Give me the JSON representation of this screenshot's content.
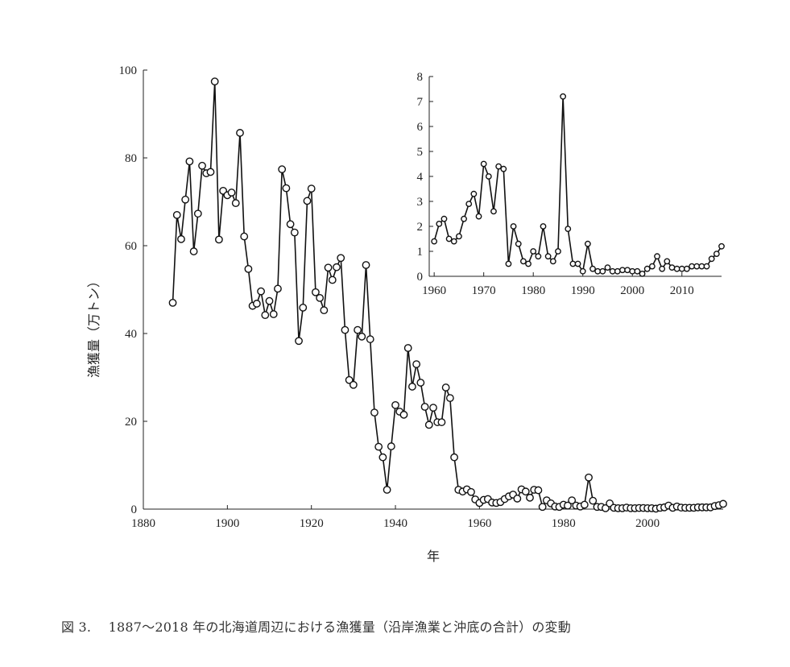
{
  "caption": "図 3.　 1887〜2018 年の北海道周辺における漁獲量（沿岸漁業と沖底の合計）の変動",
  "chart_data": [
    {
      "id": "main",
      "type": "line",
      "xlabel": "年",
      "ylabel": "漁獲量（万トン）",
      "xlim": [
        1880,
        2018
      ],
      "ylim": [
        0,
        100
      ],
      "xticks": [
        "1880",
        "1900",
        "1920",
        "1940",
        "1960",
        "1980",
        "2000"
      ],
      "yticks": [
        "0",
        "20",
        "40",
        "60",
        "80",
        "100"
      ],
      "grid": false,
      "marker": "open-circle",
      "x": [
        1887,
        1888,
        1889,
        1890,
        1891,
        1892,
        1893,
        1894,
        1895,
        1896,
        1897,
        1898,
        1899,
        1900,
        1901,
        1902,
        1903,
        1904,
        1905,
        1906,
        1907,
        1908,
        1909,
        1910,
        1911,
        1912,
        1913,
        1914,
        1915,
        1916,
        1917,
        1918,
        1919,
        1920,
        1921,
        1922,
        1923,
        1924,
        1925,
        1926,
        1927,
        1928,
        1929,
        1930,
        1931,
        1932,
        1933,
        1934,
        1935,
        1936,
        1937,
        1938,
        1939,
        1940,
        1941,
        1942,
        1943,
        1944,
        1945,
        1946,
        1947,
        1948,
        1949,
        1950,
        1951,
        1952,
        1953,
        1954,
        1955,
        1956,
        1957,
        1958,
        1959,
        1960,
        1961,
        1962,
        1963,
        1964,
        1965,
        1966,
        1967,
        1968,
        1969,
        1970,
        1971,
        1972,
        1973,
        1974,
        1975,
        1976,
        1977,
        1978,
        1979,
        1980,
        1981,
        1982,
        1983,
        1984,
        1985,
        1986,
        1987,
        1988,
        1989,
        1990,
        1991,
        1992,
        1993,
        1994,
        1995,
        1996,
        1997,
        1998,
        1999,
        2000,
        2001,
        2002,
        2003,
        2004,
        2005,
        2006,
        2007,
        2008,
        2009,
        2010,
        2011,
        2012,
        2013,
        2014,
        2015,
        2016,
        2017,
        2018
      ],
      "values": [
        47,
        67,
        61.5,
        70.5,
        79.2,
        58.7,
        67.3,
        78.2,
        76.5,
        76.8,
        97.4,
        61.4,
        72.5,
        71.5,
        72.1,
        69.7,
        85.7,
        62.1,
        54.7,
        46.3,
        46.8,
        49.6,
        44.2,
        47.4,
        44.4,
        50.2,
        77.4,
        73.1,
        64.9,
        63,
        38.3,
        45.9,
        70.2,
        73,
        49.4,
        48.1,
        45.3,
        55,
        52.2,
        55.1,
        57.2,
        40.8,
        29.4,
        28.3,
        40.8,
        39.3,
        55.6,
        38.7,
        22,
        14.2,
        11.8,
        4.4,
        14.3,
        23.7,
        22.2,
        21.5,
        36.7,
        27.9,
        33,
        28.8,
        23.3,
        19.2,
        23.1,
        19.8,
        19.8,
        27.7,
        25.3,
        11.8,
        4.4,
        4,
        4.5,
        3.9,
        2.2,
        1.4,
        2.1,
        2.3,
        1.5,
        1.4,
        1.6,
        2.3,
        2.9,
        3.3,
        2.4,
        4.5,
        4,
        2.6,
        4.4,
        4.3,
        0.5,
        2,
        1.3,
        0.6,
        0.5,
        1,
        0.8,
        2,
        0.8,
        0.6,
        1,
        7.2,
        1.9,
        0.5,
        0.5,
        0.2,
        1.3,
        0.3,
        0.2,
        0.2,
        0.35,
        0.2,
        0.2,
        0.25,
        0.25,
        0.2,
        0.2,
        0.1,
        0.3,
        0.4,
        0.8,
        0.3,
        0.6,
        0.35,
        0.3,
        0.3,
        0.3,
        0.4,
        0.4,
        0.4,
        0.4,
        0.7,
        0.9,
        1.2
      ]
    },
    {
      "id": "inset",
      "type": "line",
      "xlim": [
        1959,
        2018
      ],
      "ylim": [
        0,
        8
      ],
      "xticks": [
        "1960",
        "1970",
        "1980",
        "1990",
        "2000",
        "2010"
      ],
      "yticks": [
        "0",
        "1",
        "2",
        "3",
        "4",
        "5",
        "6",
        "7",
        "8"
      ],
      "grid": false,
      "marker": "open-circle",
      "x": [
        1960,
        1961,
        1962,
        1963,
        1964,
        1965,
        1966,
        1967,
        1968,
        1969,
        1970,
        1971,
        1972,
        1973,
        1974,
        1975,
        1976,
        1977,
        1978,
        1979,
        1980,
        1981,
        1982,
        1983,
        1984,
        1985,
        1986,
        1987,
        1988,
        1989,
        1990,
        1991,
        1992,
        1993,
        1994,
        1995,
        1996,
        1997,
        1998,
        1999,
        2000,
        2001,
        2002,
        2003,
        2004,
        2005,
        2006,
        2007,
        2008,
        2009,
        2010,
        2011,
        2012,
        2013,
        2014,
        2015,
        2016,
        2017,
        2018
      ],
      "values": [
        1.4,
        2.1,
        2.3,
        1.5,
        1.4,
        1.6,
        2.3,
        2.9,
        3.3,
        2.4,
        4.5,
        4,
        2.6,
        4.4,
        4.3,
        0.5,
        2,
        1.3,
        0.6,
        0.5,
        1,
        0.8,
        2,
        0.8,
        0.6,
        1,
        7.2,
        1.9,
        0.5,
        0.5,
        0.2,
        1.3,
        0.3,
        0.2,
        0.2,
        0.35,
        0.2,
        0.2,
        0.25,
        0.25,
        0.2,
        0.2,
        0.1,
        0.3,
        0.4,
        0.8,
        0.3,
        0.6,
        0.35,
        0.3,
        0.3,
        0.3,
        0.4,
        0.4,
        0.4,
        0.4,
        0.7,
        0.9,
        1.2
      ]
    }
  ]
}
